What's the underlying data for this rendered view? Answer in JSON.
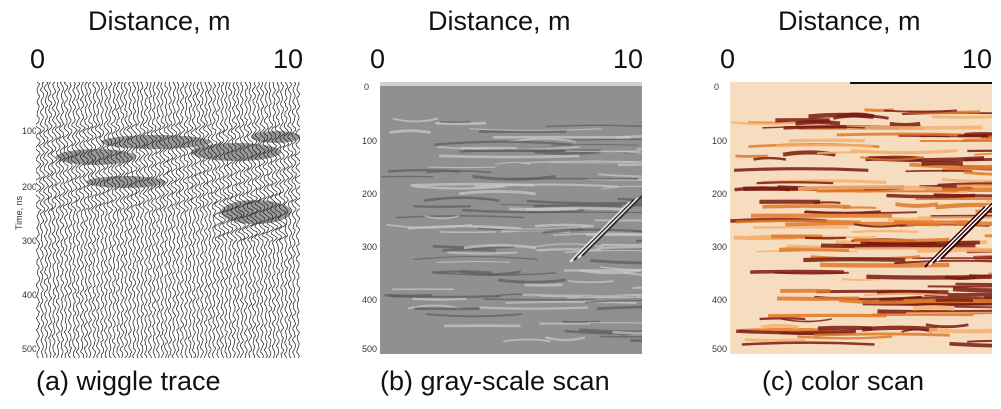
{
  "panels": [
    {
      "id": "a",
      "x_axis_title": "Distance, m",
      "x_ticks": [
        "0",
        "10"
      ],
      "y_axis_title": "Time, ns",
      "y_ticks": [
        "100",
        "200",
        "300",
        "400",
        "500"
      ],
      "caption": "(a) wiggle trace",
      "display": "wiggle"
    },
    {
      "id": "b",
      "x_axis_title": "Distance, m",
      "x_ticks": [
        "0",
        "10"
      ],
      "y_ticks": [
        "0",
        "100",
        "200",
        "300",
        "400",
        "500"
      ],
      "caption": "(b) gray-scale scan",
      "display": "grayscale"
    },
    {
      "id": "c",
      "x_axis_title": "Distance, m",
      "x_ticks": [
        "0",
        "10"
      ],
      "y_ticks": [
        "0",
        "100",
        "200",
        "300",
        "400",
        "500"
      ],
      "caption": "(c) color scan",
      "display": "color"
    }
  ],
  "colors": {
    "gray_background": "#8f9190",
    "color_light": "#f7ddc0",
    "color_dark": "#7a1a10",
    "color_mid": "#e07828"
  }
}
